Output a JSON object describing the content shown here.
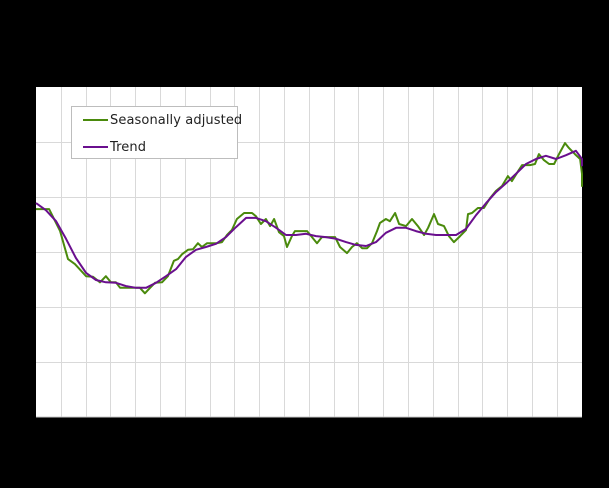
{
  "chart_data": {
    "type": "line",
    "title": "",
    "xlabel": "",
    "ylabel": "",
    "x_tick_labels_visible": false,
    "y_tick_labels_visible": false,
    "grid": true,
    "legend_position": "upper-left (inside plot)",
    "ylim": [
      0,
      6
    ],
    "y_units_note": "Axis labels not visible; values are normalized to gridline units (6 horizontal gridline intervals).",
    "xlim": [
      0,
      22
    ],
    "x_units_note": "x measured in gridline-column units (22 columns).",
    "series": [
      {
        "name": "Seasonally adjusted",
        "color": "#4a8a0c",
        "points": [
          [
            0.0,
            3.78
          ],
          [
            0.53,
            3.78
          ],
          [
            0.97,
            3.38
          ],
          [
            1.29,
            2.87
          ],
          [
            1.57,
            2.78
          ],
          [
            2.02,
            2.56
          ],
          [
            2.3,
            2.55
          ],
          [
            2.58,
            2.45
          ],
          [
            2.82,
            2.56
          ],
          [
            3.02,
            2.45
          ],
          [
            3.22,
            2.45
          ],
          [
            3.39,
            2.35
          ],
          [
            3.75,
            2.35
          ],
          [
            4.03,
            2.35
          ],
          [
            4.19,
            2.35
          ],
          [
            4.39,
            2.25
          ],
          [
            4.6,
            2.35
          ],
          [
            4.8,
            2.44
          ],
          [
            5.08,
            2.45
          ],
          [
            5.32,
            2.56
          ],
          [
            5.56,
            2.84
          ],
          [
            5.72,
            2.87
          ],
          [
            5.89,
            2.96
          ],
          [
            6.13,
            3.04
          ],
          [
            6.33,
            3.05
          ],
          [
            6.53,
            3.16
          ],
          [
            6.69,
            3.09
          ],
          [
            6.9,
            3.16
          ],
          [
            7.1,
            3.16
          ],
          [
            7.3,
            3.16
          ],
          [
            7.5,
            3.18
          ],
          [
            7.7,
            3.31
          ],
          [
            7.9,
            3.4
          ],
          [
            8.1,
            3.6
          ],
          [
            8.39,
            3.71
          ],
          [
            8.71,
            3.71
          ],
          [
            8.87,
            3.65
          ],
          [
            9.07,
            3.51
          ],
          [
            9.27,
            3.6
          ],
          [
            9.44,
            3.47
          ],
          [
            9.6,
            3.6
          ],
          [
            9.8,
            3.36
          ],
          [
            10.0,
            3.29
          ],
          [
            10.12,
            3.09
          ],
          [
            10.32,
            3.29
          ],
          [
            10.44,
            3.38
          ],
          [
            10.73,
            3.38
          ],
          [
            10.93,
            3.38
          ],
          [
            11.13,
            3.27
          ],
          [
            11.33,
            3.16
          ],
          [
            11.53,
            3.27
          ],
          [
            11.73,
            3.27
          ],
          [
            12.06,
            3.27
          ],
          [
            12.26,
            3.09
          ],
          [
            12.54,
            2.98
          ],
          [
            12.74,
            3.09
          ],
          [
            12.94,
            3.16
          ],
          [
            13.15,
            3.07
          ],
          [
            13.35,
            3.07
          ],
          [
            13.55,
            3.16
          ],
          [
            13.75,
            3.38
          ],
          [
            13.87,
            3.53
          ],
          [
            14.11,
            3.6
          ],
          [
            14.27,
            3.56
          ],
          [
            14.48,
            3.71
          ],
          [
            14.64,
            3.51
          ],
          [
            14.92,
            3.47
          ],
          [
            15.16,
            3.6
          ],
          [
            15.4,
            3.47
          ],
          [
            15.65,
            3.31
          ],
          [
            15.81,
            3.44
          ],
          [
            16.05,
            3.69
          ],
          [
            16.21,
            3.51
          ],
          [
            16.45,
            3.47
          ],
          [
            16.65,
            3.29
          ],
          [
            16.85,
            3.18
          ],
          [
            17.1,
            3.29
          ],
          [
            17.34,
            3.4
          ],
          [
            17.42,
            3.69
          ],
          [
            17.58,
            3.71
          ],
          [
            17.82,
            3.8
          ],
          [
            18.06,
            3.8
          ],
          [
            18.31,
            3.98
          ],
          [
            18.55,
            4.11
          ],
          [
            18.79,
            4.2
          ],
          [
            19.03,
            4.38
          ],
          [
            19.19,
            4.29
          ],
          [
            19.44,
            4.47
          ],
          [
            19.6,
            4.58
          ],
          [
            19.92,
            4.58
          ],
          [
            20.12,
            4.6
          ],
          [
            20.28,
            4.78
          ],
          [
            20.48,
            4.67
          ],
          [
            20.69,
            4.6
          ],
          [
            20.89,
            4.6
          ],
          [
            21.09,
            4.78
          ],
          [
            21.33,
            4.98
          ],
          [
            21.49,
            4.89
          ],
          [
            21.73,
            4.78
          ],
          [
            21.94,
            4.69
          ],
          [
            22.14,
            4.42
          ],
          [
            22.3,
            4.2
          ],
          [
            22.46,
            4.31
          ]
        ]
      },
      {
        "name": "Trend",
        "color": "#6a0f8e",
        "points": [
          [
            0.0,
            3.89
          ],
          [
            0.4,
            3.76
          ],
          [
            0.81,
            3.56
          ],
          [
            1.21,
            3.24
          ],
          [
            1.61,
            2.89
          ],
          [
            2.02,
            2.62
          ],
          [
            2.42,
            2.49
          ],
          [
            2.82,
            2.45
          ],
          [
            3.22,
            2.44
          ],
          [
            3.63,
            2.38
          ],
          [
            4.03,
            2.35
          ],
          [
            4.44,
            2.35
          ],
          [
            4.84,
            2.44
          ],
          [
            5.24,
            2.56
          ],
          [
            5.65,
            2.69
          ],
          [
            6.05,
            2.91
          ],
          [
            6.45,
            3.04
          ],
          [
            6.85,
            3.09
          ],
          [
            7.26,
            3.15
          ],
          [
            7.66,
            3.27
          ],
          [
            8.06,
            3.45
          ],
          [
            8.47,
            3.62
          ],
          [
            8.87,
            3.62
          ],
          [
            9.27,
            3.56
          ],
          [
            9.68,
            3.44
          ],
          [
            10.08,
            3.31
          ],
          [
            10.48,
            3.31
          ],
          [
            10.89,
            3.33
          ],
          [
            11.29,
            3.29
          ],
          [
            11.69,
            3.27
          ],
          [
            12.1,
            3.24
          ],
          [
            12.5,
            3.18
          ],
          [
            12.9,
            3.13
          ],
          [
            13.31,
            3.11
          ],
          [
            13.71,
            3.18
          ],
          [
            14.11,
            3.35
          ],
          [
            14.52,
            3.44
          ],
          [
            14.92,
            3.44
          ],
          [
            15.32,
            3.38
          ],
          [
            15.73,
            3.33
          ],
          [
            16.13,
            3.31
          ],
          [
            16.53,
            3.31
          ],
          [
            16.94,
            3.31
          ],
          [
            17.34,
            3.42
          ],
          [
            17.74,
            3.67
          ],
          [
            18.15,
            3.89
          ],
          [
            18.55,
            4.09
          ],
          [
            18.95,
            4.25
          ],
          [
            19.35,
            4.42
          ],
          [
            19.76,
            4.6
          ],
          [
            20.16,
            4.69
          ],
          [
            20.56,
            4.75
          ],
          [
            20.97,
            4.69
          ],
          [
            21.37,
            4.76
          ],
          [
            21.77,
            4.84
          ],
          [
            22.18,
            4.69
          ],
          [
            22.46,
            4.56
          ]
        ]
      }
    ]
  },
  "legend": {
    "items": [
      {
        "label": "Seasonally adjusted",
        "color": "#4a8a0c"
      },
      {
        "label": "Trend",
        "color": "#6a0f8e"
      }
    ]
  }
}
